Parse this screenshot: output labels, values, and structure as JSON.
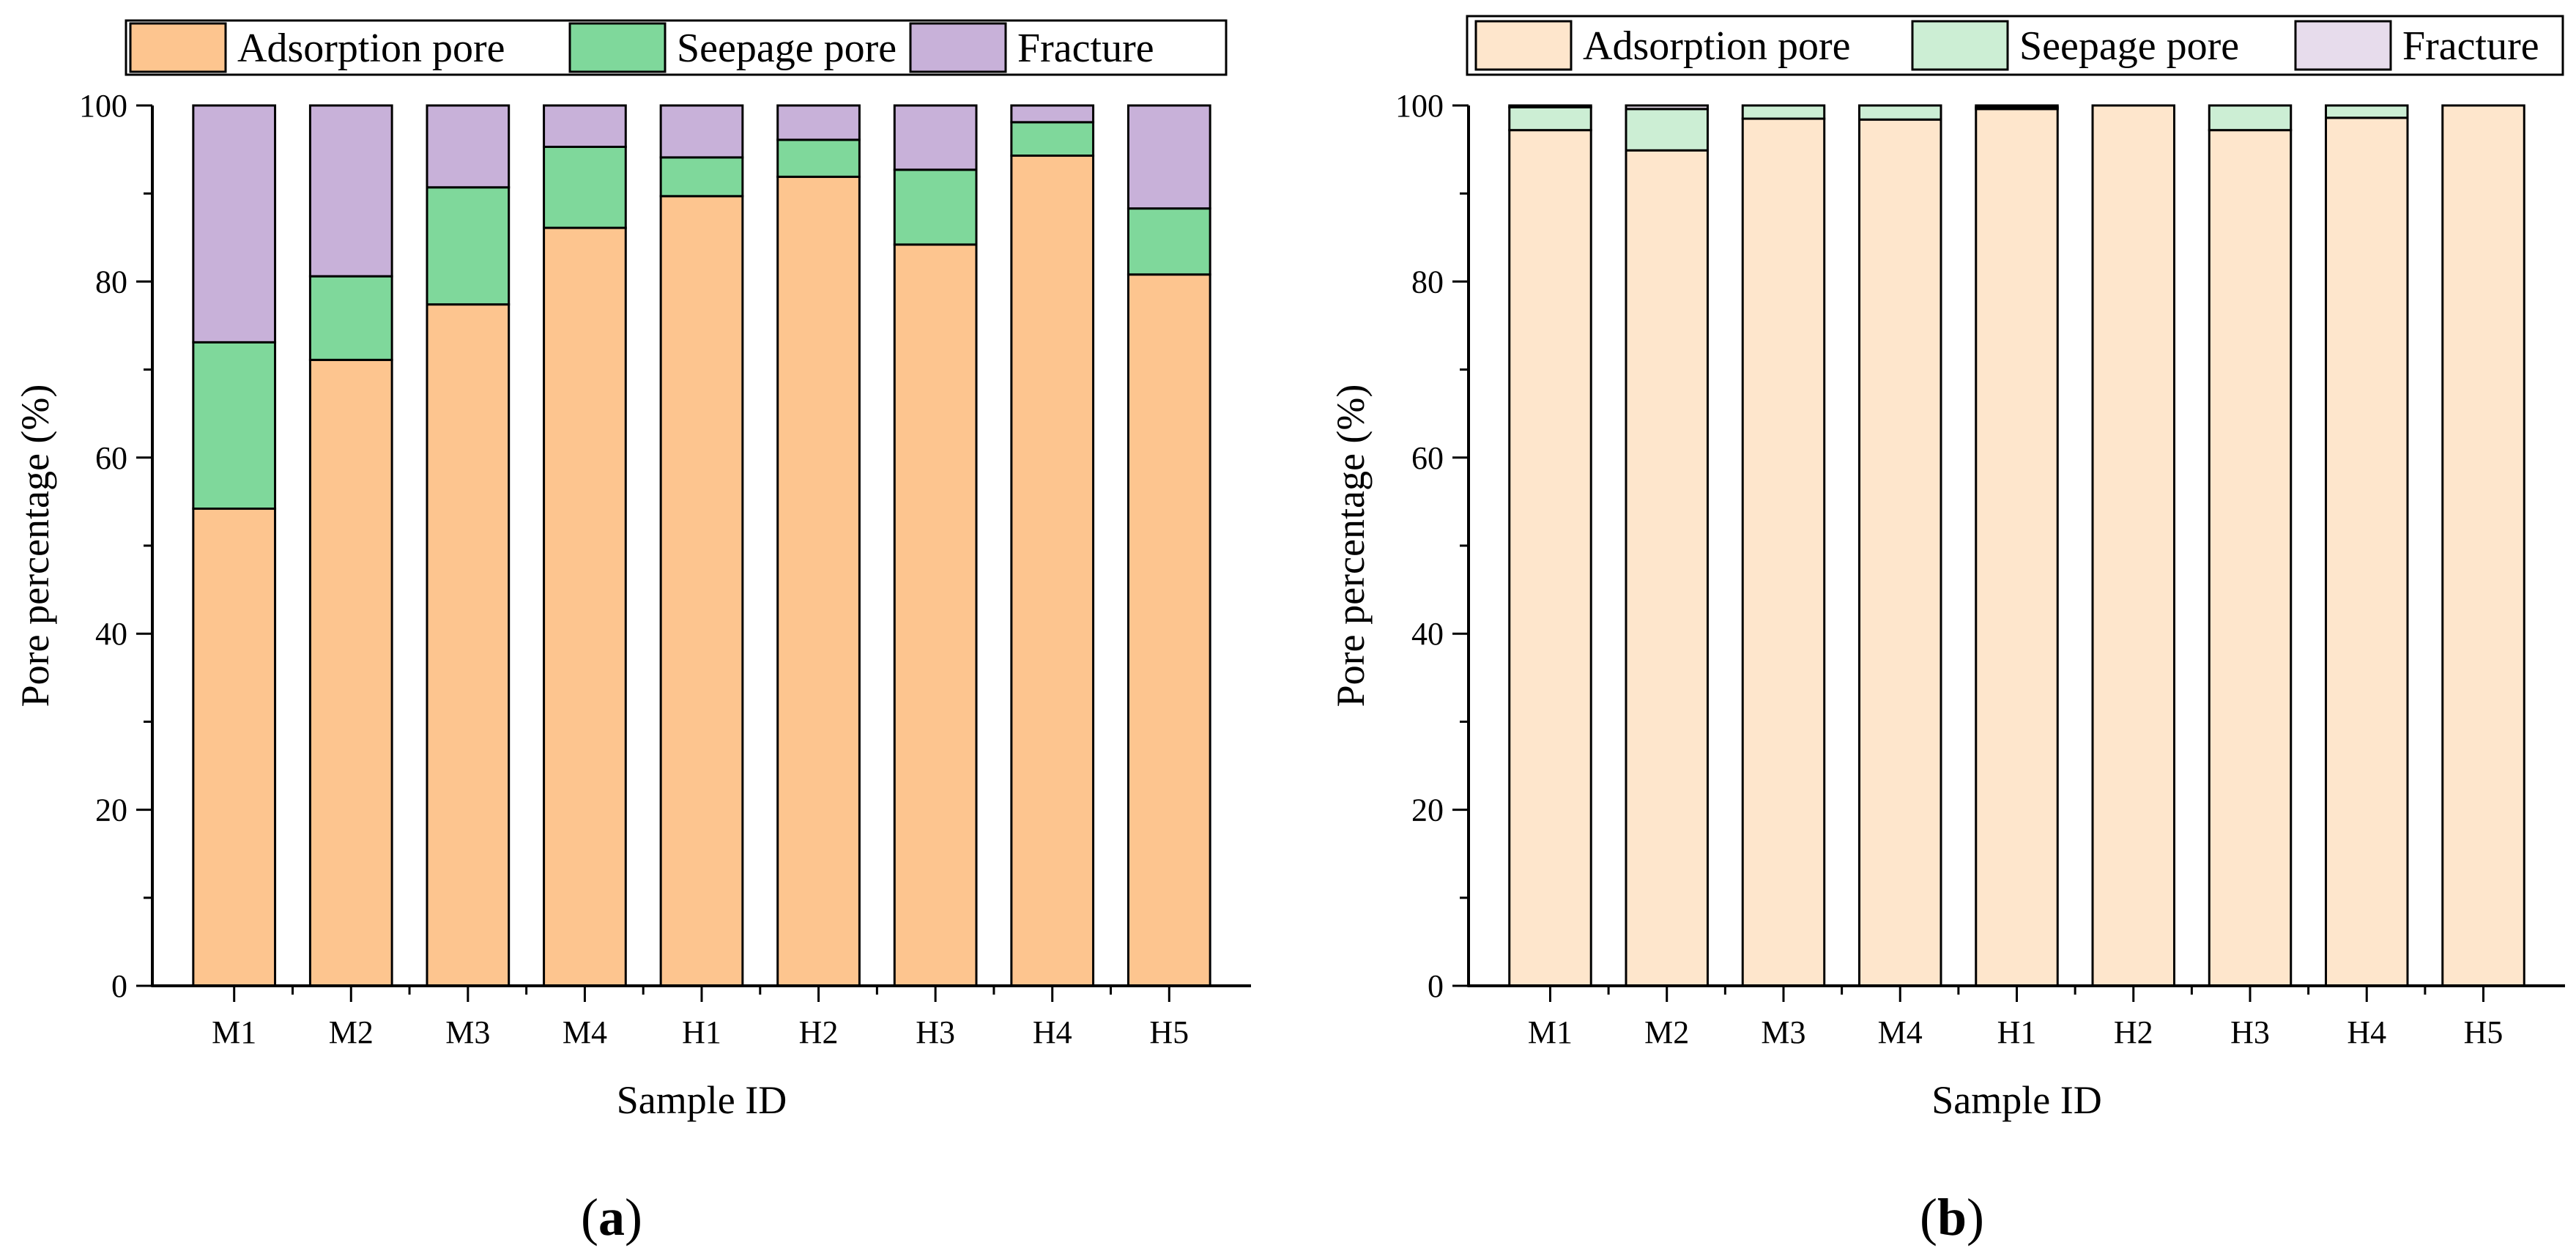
{
  "charts_palette": {
    "a": {
      "adsorption": "#FDC58F",
      "seepage": "#7FD89B",
      "fracture": "#C8B1D9"
    },
    "b": {
      "adsorption": "#FEE6CC",
      "seepage": "#CCEED4",
      "fracture": "#E7DCEC"
    }
  },
  "chart_data": [
    {
      "id": "a",
      "type": "bar",
      "stacked": true,
      "panel_label": {
        "open": "(",
        "letter": "a",
        "close": ")"
      },
      "categories": [
        "M1",
        "M2",
        "M3",
        "M4",
        "H1",
        "H2",
        "H3",
        "H4",
        "H5"
      ],
      "series": [
        {
          "name": "Adsorption pore",
          "values": [
            54.2,
            71.1,
            77.4,
            86.1,
            89.7,
            91.9,
            84.2,
            94.3,
            80.8
          ]
        },
        {
          "name": "Seepage pore",
          "values": [
            18.9,
            9.5,
            13.3,
            9.2,
            4.4,
            4.2,
            8.5,
            3.8,
            7.5
          ]
        },
        {
          "name": "Fracture",
          "values": [
            26.9,
            19.4,
            9.3,
            4.7,
            5.9,
            3.9,
            7.3,
            1.9,
            11.7
          ]
        }
      ],
      "title": "",
      "xlabel": "Sample ID",
      "ylabel": "Pore percentage (%)",
      "ylim": [
        0,
        100
      ],
      "yticks": [
        "0",
        "20",
        "40",
        "60",
        "80",
        "100"
      ],
      "legend_position": "top"
    },
    {
      "id": "b",
      "type": "bar",
      "stacked": true,
      "panel_label": {
        "open": "(",
        "letter": "b",
        "close": ")"
      },
      "categories": [
        "M1",
        "M2",
        "M3",
        "M4",
        "H1",
        "H2",
        "H3",
        "H4",
        "H5"
      ],
      "series": [
        {
          "name": "Adsorption pore",
          "values": [
            97.2,
            94.9,
            98.5,
            98.4,
            99.6,
            100.0,
            97.2,
            98.6,
            100.0
          ]
        },
        {
          "name": "Seepage pore",
          "values": [
            2.6,
            4.7,
            1.5,
            1.6,
            0.2,
            0.0,
            2.8,
            1.4,
            0.0
          ]
        },
        {
          "name": "Fracture",
          "values": [
            0.2,
            0.4,
            0.0,
            0.0,
            0.2,
            0.0,
            0.0,
            0.0,
            0.0
          ]
        }
      ],
      "title": "",
      "xlabel": "Sample ID",
      "ylabel": "Pore percentage (%)",
      "ylim": [
        0,
        100
      ],
      "yticks": [
        "0",
        "20",
        "40",
        "60",
        "80",
        "100"
      ],
      "legend_position": "top"
    }
  ]
}
